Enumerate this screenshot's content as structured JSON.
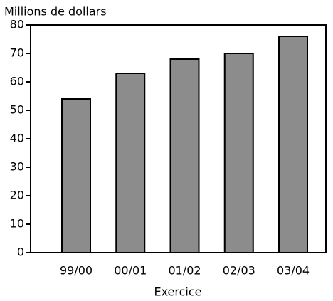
{
  "chart_data": {
    "type": "bar",
    "y_label": "Millions de dollars",
    "x_label": "Exercice",
    "categories": [
      "99/00",
      "00/01",
      "01/02",
      "02/03",
      "03/04"
    ],
    "values": [
      54,
      63,
      68,
      70,
      76
    ],
    "color": "#8c8c8c",
    "ylim": [
      0,
      80
    ],
    "yticks": [
      0,
      10,
      20,
      30,
      40,
      50,
      60,
      70,
      80
    ]
  }
}
